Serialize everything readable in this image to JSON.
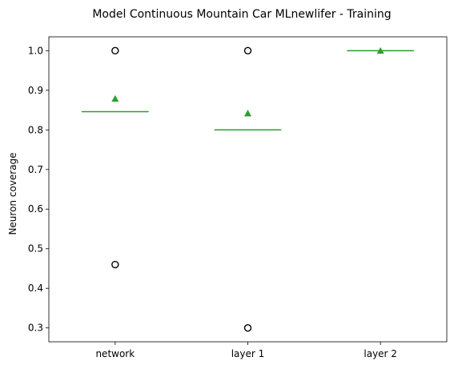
{
  "chart_data": {
    "type": "box",
    "title": "Model Continuous Mountain Car MLnewlifer - Training",
    "xlabel": "",
    "ylabel": "Neuron coverage",
    "categories": [
      "network",
      "layer 1",
      "layer 2"
    ],
    "ylim": [
      0.265,
      1.035
    ],
    "yticks": [
      0.3,
      0.4,
      0.5,
      0.6,
      0.7,
      0.8,
      0.9,
      1.0
    ],
    "ytick_labels": [
      "0.3",
      "0.4",
      "0.5",
      "0.6",
      "0.7",
      "0.8",
      "0.9",
      "1.0"
    ],
    "grid": false,
    "boxes": [
      {
        "category": "network",
        "q1": 0.846,
        "median": 0.846,
        "q3": 0.846,
        "whisker_low": 0.846,
        "whisker_high": 0.846,
        "mean": 0.879,
        "outliers": [
          0.46,
          1.0
        ]
      },
      {
        "category": "layer 1",
        "q1": 0.8,
        "median": 0.8,
        "q3": 0.8,
        "whisker_low": 0.8,
        "whisker_high": 0.8,
        "mean": 0.842,
        "outliers": [
          0.3,
          1.0
        ]
      },
      {
        "category": "layer 2",
        "q1": 1.0,
        "median": 1.0,
        "q3": 1.0,
        "whisker_low": 1.0,
        "whisker_high": 1.0,
        "mean": 1.0,
        "outliers": []
      }
    ],
    "colors": {
      "median": "#2ca02c",
      "box": "#1f77b4",
      "mean_marker": "#2ca02c",
      "outlier": "#000000"
    }
  }
}
